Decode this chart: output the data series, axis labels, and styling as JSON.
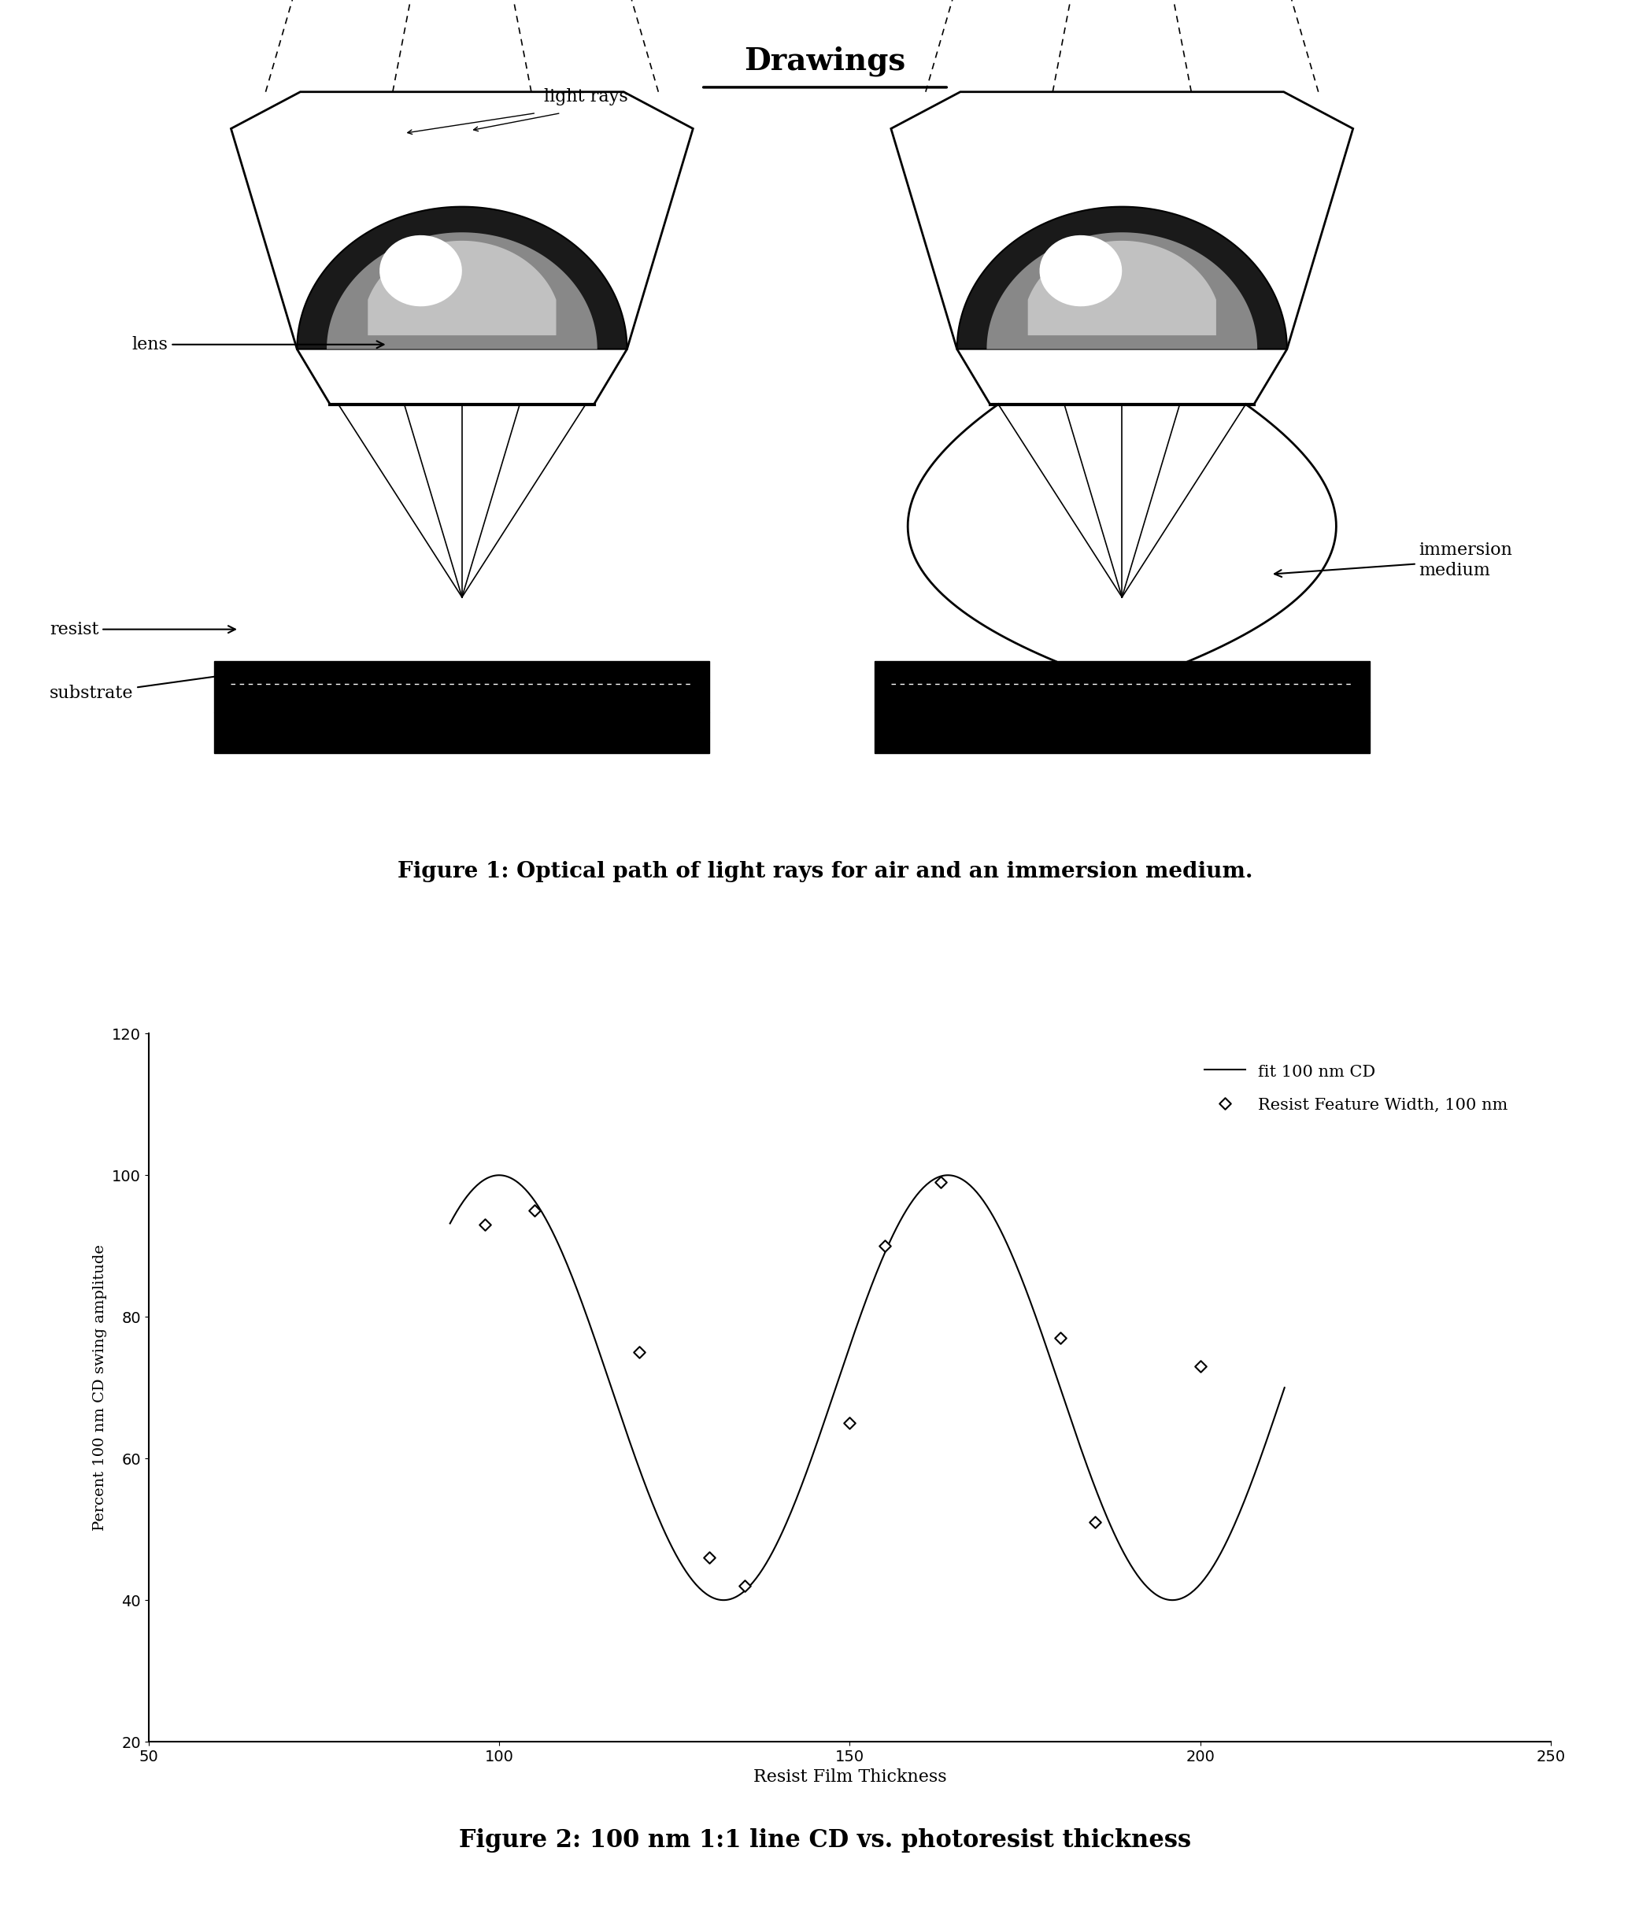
{
  "title": "Drawings",
  "fig1_caption": "Figure 1: Optical path of light rays for air and an immersion medium.",
  "fig2_caption": "Figure 2: 100 nm 1:1 line CD vs. photoresist thickness",
  "scatter_x": [
    98,
    105,
    120,
    130,
    135,
    150,
    155,
    163,
    180,
    185,
    200
  ],
  "scatter_y": [
    93,
    95,
    75,
    46,
    42,
    65,
    90,
    99,
    77,
    51,
    73
  ],
  "xlabel": "Resist Film Thickness",
  "ylabel": "Percent 100 nm CD swing amplitude",
  "xlim": [
    50,
    250
  ],
  "ylim": [
    20,
    120
  ],
  "xticks": [
    50,
    100,
    150,
    200,
    250
  ],
  "yticks": [
    20,
    40,
    60,
    80,
    100,
    120
  ],
  "legend_scatter": "Resist Feature Width, 100 nm",
  "legend_line": "fit 100 nm CD",
  "bg_color": "#ffffff",
  "line_color": "#000000",
  "scatter_color": "#000000"
}
